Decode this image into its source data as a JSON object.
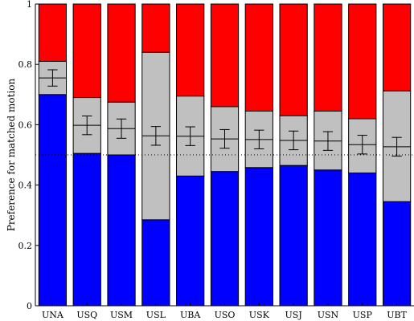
{
  "chart_data": {
    "type": "bar",
    "subtype": "stacked-with-error-bars",
    "ylabel": "Preference for matched motion",
    "ylim": [
      0,
      1
    ],
    "y_ticks": [
      "0",
      "0.2",
      "0.4",
      "0.6",
      "0.8",
      "1"
    ],
    "categories": [
      "UNA",
      "USQ",
      "USM",
      "USL",
      "UBA",
      "USO",
      "USK",
      "USJ",
      "USN",
      "USP",
      "UBT"
    ],
    "series": [
      {
        "color": "#0000ff",
        "values": [
          0.7,
          0.505,
          0.5,
          0.285,
          0.43,
          0.445,
          0.458,
          0.465,
          0.45,
          0.44,
          0.345
        ]
      },
      {
        "color": "#c0c0c0",
        "values": [
          0.11,
          0.185,
          0.175,
          0.555,
          0.265,
          0.215,
          0.187,
          0.165,
          0.195,
          0.18,
          0.367
        ]
      },
      {
        "color": "#ff0000",
        "values": [
          0.19,
          0.31,
          0.325,
          0.16,
          0.305,
          0.34,
          0.355,
          0.37,
          0.355,
          0.38,
          0.288
        ]
      }
    ],
    "mean": [
      0.755,
      0.598,
      0.587,
      0.563,
      0.562,
      0.553,
      0.551,
      0.548,
      0.546,
      0.534,
      0.527
    ],
    "error_low": [
      0.728,
      0.567,
      0.555,
      0.532,
      0.531,
      0.522,
      0.52,
      0.517,
      0.515,
      0.503,
      0.496
    ],
    "error_high": [
      0.782,
      0.629,
      0.619,
      0.594,
      0.593,
      0.584,
      0.582,
      0.579,
      0.577,
      0.565,
      0.558
    ],
    "reference_line": {
      "y": 0.5,
      "style": "dotted"
    },
    "colors": {
      "blue": "#0000ff",
      "gray": "#c0c0c0",
      "red": "#ff0000"
    }
  }
}
